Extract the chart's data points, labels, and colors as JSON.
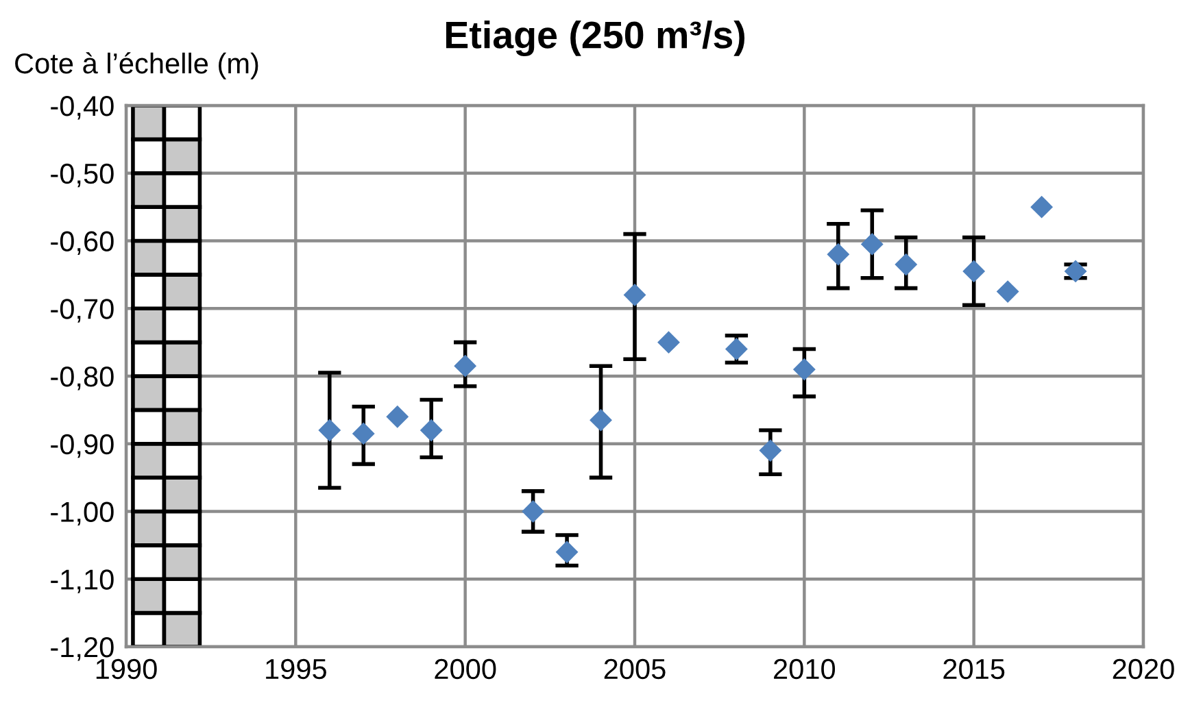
{
  "chart_data": {
    "type": "scatter",
    "title": "Etiage (250 m³/s)",
    "ylabel": "Cote à l’échelle (m)",
    "x": [
      1996,
      1997,
      1998,
      1999,
      2000,
      2002,
      2003,
      2004,
      2005,
      2006,
      2008,
      2009,
      2010,
      2011,
      2012,
      2013,
      2015,
      2016,
      2017,
      2018
    ],
    "series": [
      {
        "color": "#4f81bd",
        "values": [
          -0.88,
          -0.885,
          -0.86,
          -0.88,
          -0.785,
          -1.0,
          -1.06,
          -0.865,
          -0.68,
          -0.75,
          -0.76,
          -0.91,
          -0.79,
          -0.62,
          -0.605,
          -0.635,
          -0.645,
          -0.675,
          -0.55,
          -0.645
        ],
        "errors": [
          [
            -0.965,
            -0.795
          ],
          [
            -0.93,
            -0.845
          ],
          null,
          [
            -0.92,
            -0.835
          ],
          [
            -0.815,
            -0.75
          ],
          [
            -1.03,
            -0.97
          ],
          [
            -1.08,
            -1.035
          ],
          [
            -0.95,
            -0.785
          ],
          [
            -0.775,
            -0.59
          ],
          null,
          [
            -0.78,
            -0.74
          ],
          [
            -0.945,
            -0.88
          ],
          [
            -0.83,
            -0.76
          ],
          [
            -0.67,
            -0.575
          ],
          [
            -0.655,
            -0.555
          ],
          [
            -0.67,
            -0.595
          ],
          [
            -0.695,
            -0.595
          ],
          null,
          null,
          [
            -0.655,
            -0.635
          ]
        ]
      }
    ],
    "marker": "diamond",
    "xlim": [
      1990,
      2020
    ],
    "xticks": [
      1990,
      1995,
      2000,
      2005,
      2010,
      2015,
      2020
    ],
    "ylim": [
      -1.2,
      -0.4
    ],
    "yticks": [
      {
        "value": -1.2,
        "label": "-1,20"
      },
      {
        "value": -1.1,
        "label": "-1,10"
      },
      {
        "value": -1.0,
        "label": "-1,00"
      },
      {
        "value": -0.9,
        "label": "-0,90"
      },
      {
        "value": -0.8,
        "label": "-0,80"
      },
      {
        "value": -0.7,
        "label": "-0,70"
      },
      {
        "value": -0.6,
        "label": "-0,60"
      },
      {
        "value": -0.5,
        "label": "-0,50"
      },
      {
        "value": -0.4,
        "label": "-0,40"
      }
    ],
    "grid": true
  }
}
